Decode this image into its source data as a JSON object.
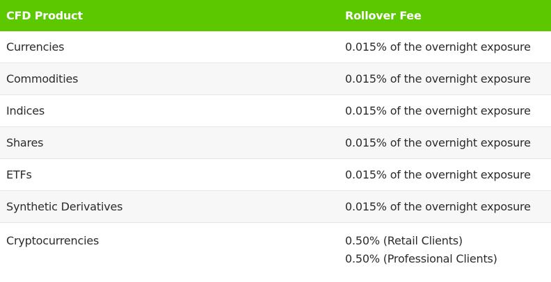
{
  "header": {
    "col_product": "CFD Product",
    "col_fee": "Rollover Fee"
  },
  "rows": [
    {
      "product": "Currencies",
      "fee": "0.015% of the overnight exposure"
    },
    {
      "product": "Commodities",
      "fee": "0.015% of the overnight exposure"
    },
    {
      "product": "Indices",
      "fee": "0.015% of the overnight exposure"
    },
    {
      "product": "Shares",
      "fee": "0.015% of the overnight exposure"
    },
    {
      "product": "ETFs",
      "fee": "0.015% of the overnight exposure"
    },
    {
      "product": "Synthetic Derivatives",
      "fee": "0.015% of the overnight exposure"
    },
    {
      "product": "Cryptocurrencies",
      "fee_lines": [
        "0.50% (Retail Clients)",
        "0.50% (Professional Clients)"
      ]
    }
  ],
  "colors": {
    "header_bg": "#5cc800",
    "header_text": "#ffffff",
    "alt_row_bg": "#f7f7f7",
    "divider": "#e6e6e6"
  }
}
